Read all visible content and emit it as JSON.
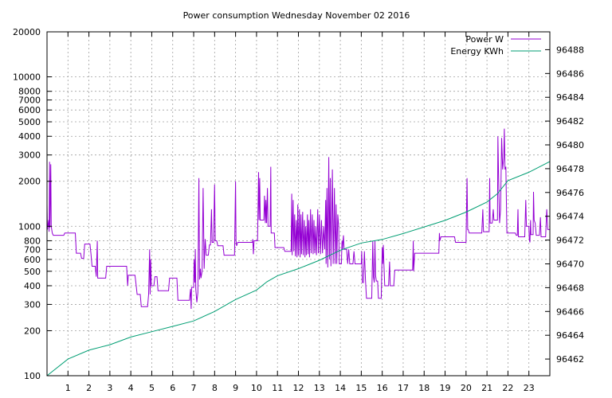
{
  "chart_data": {
    "type": "line",
    "title": "Power consumption Wednesday November 02 2016",
    "xlabel": "",
    "ylabel": "",
    "xlim": [
      0,
      24
    ],
    "x_ticks": [
      1,
      2,
      3,
      4,
      5,
      6,
      7,
      8,
      9,
      10,
      11,
      12,
      13,
      14,
      15,
      16,
      17,
      18,
      19,
      20,
      21,
      22,
      23
    ],
    "y_left": {
      "scale": "log",
      "lim": [
        100,
        20000
      ],
      "ticks": [
        100,
        200,
        300,
        400,
        500,
        600,
        700,
        800,
        1000,
        2000,
        3000,
        4000,
        5000,
        6000,
        7000,
        8000,
        10000,
        20000
      ]
    },
    "y_right": {
      "scale": "linear",
      "lim": [
        96460.6,
        96489.5
      ],
      "ticks": [
        96462,
        96464,
        96466,
        96468,
        96470,
        96472,
        96474,
        96476,
        96478,
        96480,
        96482,
        96484,
        96486,
        96488
      ]
    },
    "grid": true,
    "legend": "top-right",
    "series": [
      {
        "name": "Power W",
        "axis": "left",
        "color": "#9400d3",
        "points": [
          [
            0.0,
            1400
          ],
          [
            0.02,
            950
          ],
          [
            0.08,
            1100
          ],
          [
            0.1,
            920
          ],
          [
            0.12,
            2700
          ],
          [
            0.14,
            980
          ],
          [
            0.18,
            2600
          ],
          [
            0.2,
            1000
          ],
          [
            0.25,
            900
          ],
          [
            0.3,
            870
          ],
          [
            0.8,
            870
          ],
          [
            0.85,
            900
          ],
          [
            1.35,
            900
          ],
          [
            1.4,
            660
          ],
          [
            1.6,
            660
          ],
          [
            1.65,
            610
          ],
          [
            1.75,
            610
          ],
          [
            1.8,
            760
          ],
          [
            2.05,
            760
          ],
          [
            2.1,
            650
          ],
          [
            2.15,
            540
          ],
          [
            2.3,
            540
          ],
          [
            2.35,
            460
          ],
          [
            2.4,
            800
          ],
          [
            2.42,
            450
          ],
          [
            2.8,
            450
          ],
          [
            2.85,
            540
          ],
          [
            3.0,
            540
          ],
          [
            3.8,
            540
          ],
          [
            3.85,
            400
          ],
          [
            3.88,
            470
          ],
          [
            4.2,
            470
          ],
          [
            4.25,
            410
          ],
          [
            4.3,
            350
          ],
          [
            4.45,
            350
          ],
          [
            4.5,
            290
          ],
          [
            4.8,
            290
          ],
          [
            4.85,
            350
          ],
          [
            4.9,
            700
          ],
          [
            4.92,
            350
          ],
          [
            4.95,
            600
          ],
          [
            4.98,
            400
          ],
          [
            5.1,
            400
          ],
          [
            5.15,
            460
          ],
          [
            5.25,
            460
          ],
          [
            5.3,
            370
          ],
          [
            5.8,
            370
          ],
          [
            5.85,
            450
          ],
          [
            6.2,
            450
          ],
          [
            6.25,
            320
          ],
          [
            6.3,
            320
          ],
          [
            6.8,
            320
          ],
          [
            6.85,
            380
          ],
          [
            6.88,
            280
          ],
          [
            6.9,
            390
          ],
          [
            7.0,
            390
          ],
          [
            7.02,
            600
          ],
          [
            7.05,
            420
          ],
          [
            7.08,
            700
          ],
          [
            7.1,
            380
          ],
          [
            7.15,
            310
          ],
          [
            7.2,
            360
          ],
          [
            7.25,
            2100
          ],
          [
            7.28,
            440
          ],
          [
            7.32,
            520
          ],
          [
            7.35,
            450
          ],
          [
            7.4,
            500
          ],
          [
            7.45,
            1800
          ],
          [
            7.5,
            520
          ],
          [
            7.55,
            820
          ],
          [
            7.6,
            640
          ],
          [
            7.7,
            640
          ],
          [
            7.75,
            750
          ],
          [
            7.8,
            750
          ],
          [
            7.85,
            1300
          ],
          [
            7.88,
            780
          ],
          [
            7.95,
            780
          ],
          [
            8.0,
            1900
          ],
          [
            8.03,
            800
          ],
          [
            8.1,
            800
          ],
          [
            8.15,
            740
          ],
          [
            8.4,
            740
          ],
          [
            8.45,
            640
          ],
          [
            8.95,
            640
          ],
          [
            9.0,
            2000
          ],
          [
            9.02,
            800
          ],
          [
            9.05,
            740
          ],
          [
            9.1,
            780
          ],
          [
            9.8,
            780
          ],
          [
            9.82,
            820
          ],
          [
            9.85,
            650
          ],
          [
            9.88,
            800
          ],
          [
            10.05,
            800
          ],
          [
            10.1,
            2300
          ],
          [
            10.12,
            1100
          ],
          [
            10.15,
            2100
          ],
          [
            10.18,
            1100
          ],
          [
            10.35,
            1100
          ],
          [
            10.38,
            1600
          ],
          [
            10.42,
            1050
          ],
          [
            10.45,
            1500
          ],
          [
            10.48,
            1050
          ],
          [
            10.52,
            1800
          ],
          [
            10.55,
            1000
          ],
          [
            10.65,
            1000
          ],
          [
            10.68,
            2500
          ],
          [
            10.7,
            900
          ],
          [
            10.85,
            900
          ],
          [
            10.88,
            720
          ],
          [
            11.3,
            720
          ],
          [
            11.35,
            680
          ],
          [
            11.65,
            680
          ],
          [
            11.68,
            1650
          ],
          [
            11.7,
            640
          ],
          [
            11.75,
            1500
          ],
          [
            11.78,
            680
          ],
          [
            11.82,
            1200
          ],
          [
            11.85,
            630
          ],
          [
            11.9,
            1100
          ],
          [
            11.93,
            620
          ],
          [
            11.97,
            1400
          ],
          [
            12.0,
            640
          ],
          [
            12.05,
            1300
          ],
          [
            12.08,
            620
          ],
          [
            12.12,
            1200
          ],
          [
            12.15,
            650
          ],
          [
            12.2,
            1250
          ],
          [
            12.23,
            640
          ],
          [
            12.28,
            1100
          ],
          [
            12.31,
            620
          ],
          [
            12.35,
            1000
          ],
          [
            12.38,
            640
          ],
          [
            12.43,
            1200
          ],
          [
            12.46,
            650
          ],
          [
            12.5,
            1100
          ],
          [
            12.53,
            620
          ],
          [
            12.58,
            1300
          ],
          [
            12.61,
            660
          ],
          [
            12.66,
            1200
          ],
          [
            12.7,
            650
          ],
          [
            12.74,
            1100
          ],
          [
            12.78,
            660
          ],
          [
            12.82,
            1000
          ],
          [
            12.86,
            640
          ],
          [
            12.92,
            1300
          ],
          [
            12.95,
            660
          ],
          [
            13.0,
            1200
          ],
          [
            13.05,
            650
          ],
          [
            13.1,
            1100
          ],
          [
            13.15,
            660
          ],
          [
            13.2,
            1000
          ],
          [
            13.25,
            700
          ],
          [
            13.3,
            1500
          ],
          [
            13.32,
            560
          ],
          [
            13.36,
            1800
          ],
          [
            13.4,
            530
          ],
          [
            13.45,
            2900
          ],
          [
            13.48,
            600
          ],
          [
            13.52,
            2100
          ],
          [
            13.55,
            540
          ],
          [
            13.62,
            2400
          ],
          [
            13.66,
            560
          ],
          [
            13.72,
            1800
          ],
          [
            13.75,
            560
          ],
          [
            13.8,
            1400
          ],
          [
            13.83,
            560
          ],
          [
            13.88,
            1200
          ],
          [
            13.92,
            1000
          ],
          [
            13.95,
            560
          ],
          [
            14.05,
            560
          ],
          [
            14.08,
            800
          ],
          [
            14.1,
            700
          ],
          [
            14.15,
            870
          ],
          [
            14.18,
            700
          ],
          [
            14.3,
            700
          ],
          [
            14.35,
            560
          ],
          [
            14.4,
            700
          ],
          [
            14.45,
            560
          ],
          [
            14.6,
            560
          ],
          [
            14.65,
            680
          ],
          [
            14.7,
            560
          ],
          [
            14.8,
            560
          ],
          [
            15.0,
            560
          ],
          [
            15.02,
            680
          ],
          [
            15.05,
            420
          ],
          [
            15.1,
            420
          ],
          [
            15.15,
            680
          ],
          [
            15.2,
            440
          ],
          [
            15.25,
            330
          ],
          [
            15.5,
            330
          ],
          [
            15.55,
            800
          ],
          [
            15.58,
            460
          ],
          [
            15.62,
            420
          ],
          [
            15.65,
            800
          ],
          [
            15.68,
            470
          ],
          [
            15.72,
            430
          ],
          [
            15.78,
            430
          ],
          [
            15.82,
            330
          ],
          [
            15.95,
            330
          ],
          [
            16.0,
            720
          ],
          [
            16.02,
            560
          ],
          [
            16.05,
            750
          ],
          [
            16.08,
            550
          ],
          [
            16.12,
            400
          ],
          [
            16.3,
            400
          ],
          [
            16.35,
            580
          ],
          [
            16.38,
            400
          ],
          [
            16.55,
            400
          ],
          [
            16.6,
            510
          ],
          [
            17.45,
            510
          ],
          [
            17.48,
            800
          ],
          [
            17.5,
            500
          ],
          [
            17.55,
            660
          ],
          [
            18.7,
            660
          ],
          [
            18.73,
            900
          ],
          [
            18.75,
            800
          ],
          [
            18.8,
            850
          ],
          [
            19.45,
            850
          ],
          [
            19.5,
            780
          ],
          [
            20.0,
            780
          ],
          [
            20.05,
            2100
          ],
          [
            20.08,
            950
          ],
          [
            20.1,
            950
          ],
          [
            20.15,
            900
          ],
          [
            20.75,
            900
          ],
          [
            20.8,
            1300
          ],
          [
            20.83,
            920
          ],
          [
            21.1,
            920
          ],
          [
            21.13,
            2100
          ],
          [
            21.15,
            1050
          ],
          [
            21.25,
            1050
          ],
          [
            21.3,
            1300
          ],
          [
            21.33,
            1100
          ],
          [
            21.5,
            1100
          ],
          [
            21.52,
            4000
          ],
          [
            21.55,
            2300
          ],
          [
            21.6,
            1050
          ],
          [
            21.65,
            1300
          ],
          [
            21.7,
            3900
          ],
          [
            21.75,
            2400
          ],
          [
            21.8,
            2900
          ],
          [
            21.83,
            4500
          ],
          [
            21.86,
            2400
          ],
          [
            21.9,
            2500
          ],
          [
            21.95,
            900
          ],
          [
            22.35,
            900
          ],
          [
            22.4,
            870
          ],
          [
            22.45,
            870
          ],
          [
            22.48,
            1300
          ],
          [
            22.5,
            850
          ],
          [
            22.8,
            850
          ],
          [
            22.85,
            1500
          ],
          [
            22.88,
            1000
          ],
          [
            23.0,
            1000
          ],
          [
            23.02,
            820
          ],
          [
            23.05,
            780
          ],
          [
            23.08,
            1100
          ],
          [
            23.1,
            880
          ],
          [
            23.2,
            880
          ],
          [
            23.22,
            1700
          ],
          [
            23.25,
            1100
          ],
          [
            23.3,
            1050
          ],
          [
            23.35,
            870
          ],
          [
            23.5,
            870
          ],
          [
            23.55,
            1150
          ],
          [
            23.58,
            850
          ],
          [
            23.8,
            850
          ],
          [
            23.85,
            1300
          ],
          [
            23.9,
            950
          ],
          [
            24.0,
            950
          ]
        ]
      },
      {
        "name": "Energy KWh",
        "axis": "right",
        "color": "#009e73",
        "points": [
          [
            0,
            96460.6
          ],
          [
            1,
            96462.0
          ],
          [
            2,
            96462.75
          ],
          [
            3,
            96463.2
          ],
          [
            4,
            96463.85
          ],
          [
            5,
            96464.3
          ],
          [
            6,
            96464.75
          ],
          [
            7,
            96465.2
          ],
          [
            8,
            96466.0
          ],
          [
            9,
            96467.0
          ],
          [
            10,
            96467.8
          ],
          [
            10.5,
            96468.5
          ],
          [
            11,
            96469.0
          ],
          [
            12,
            96469.6
          ],
          [
            13,
            96470.3
          ],
          [
            14,
            96471.15
          ],
          [
            15,
            96471.75
          ],
          [
            16,
            96472.05
          ],
          [
            17,
            96472.55
          ],
          [
            18,
            96473.1
          ],
          [
            19,
            96473.65
          ],
          [
            20,
            96474.35
          ],
          [
            21,
            96475.2
          ],
          [
            21.5,
            96475.9
          ],
          [
            22,
            96477.0
          ],
          [
            23,
            96477.7
          ],
          [
            24,
            96478.6
          ]
        ]
      }
    ]
  }
}
